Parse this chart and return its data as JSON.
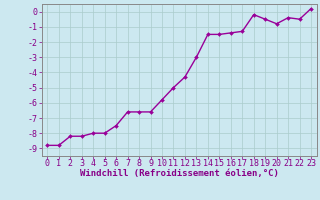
{
  "x": [
    0,
    1,
    2,
    3,
    4,
    5,
    6,
    7,
    8,
    9,
    10,
    11,
    12,
    13,
    14,
    15,
    16,
    17,
    18,
    19,
    20,
    21,
    22,
    23
  ],
  "y": [
    -8.8,
    -8.8,
    -8.2,
    -8.2,
    -8.0,
    -8.0,
    -7.5,
    -6.6,
    -6.6,
    -6.6,
    -5.8,
    -5.0,
    -4.3,
    -3.0,
    -1.5,
    -1.5,
    -1.4,
    -1.3,
    -0.2,
    -0.5,
    -0.8,
    -0.4,
    -0.5,
    0.2
  ],
  "line_color": "#990099",
  "marker": "D",
  "marker_size": 2.0,
  "background_color": "#cce8f0",
  "grid_color": "#aacccc",
  "xlabel": "Windchill (Refroidissement éolien,°C)",
  "ylabel": "",
  "xlim": [
    -0.5,
    23.5
  ],
  "ylim": [
    -9.5,
    0.5
  ],
  "yticks": [
    0,
    -1,
    -2,
    -3,
    -4,
    -5,
    -6,
    -7,
    -8,
    -9
  ],
  "xticks": [
    0,
    1,
    2,
    3,
    4,
    5,
    6,
    7,
    8,
    9,
    10,
    11,
    12,
    13,
    14,
    15,
    16,
    17,
    18,
    19,
    20,
    21,
    22,
    23
  ],
  "tick_color": "#880088",
  "label_color": "#880088",
  "spine_color": "#888888",
  "xlabel_fontsize": 6.5,
  "tick_fontsize": 6.0,
  "line_width": 1.0
}
